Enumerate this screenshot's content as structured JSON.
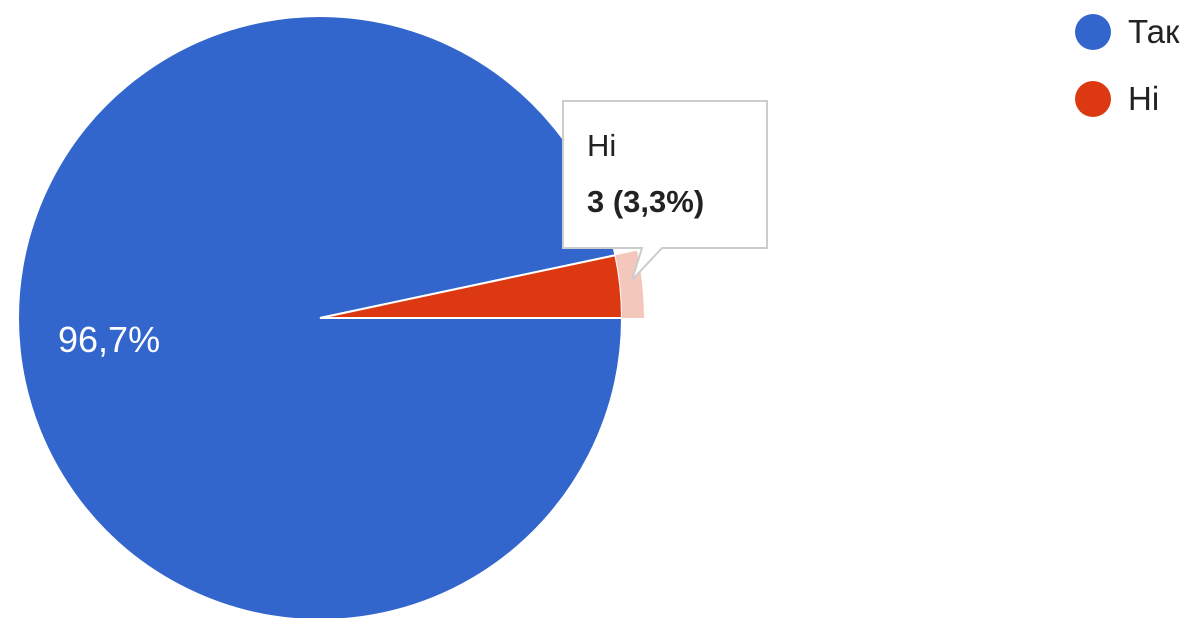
{
  "chart_data": {
    "type": "pie",
    "slices": [
      {
        "label": "Так",
        "value": 87,
        "percent_label": "96,7%",
        "color": "#3366cc"
      },
      {
        "label": "Ні",
        "value": 3,
        "percent_label": "3,3%",
        "color": "#dc3912"
      }
    ],
    "legend_position": "top-right",
    "tooltip": {
      "title": "Ні",
      "value_text": "3 (3,3%)"
    },
    "highlight_color": "#f4c7bd"
  }
}
